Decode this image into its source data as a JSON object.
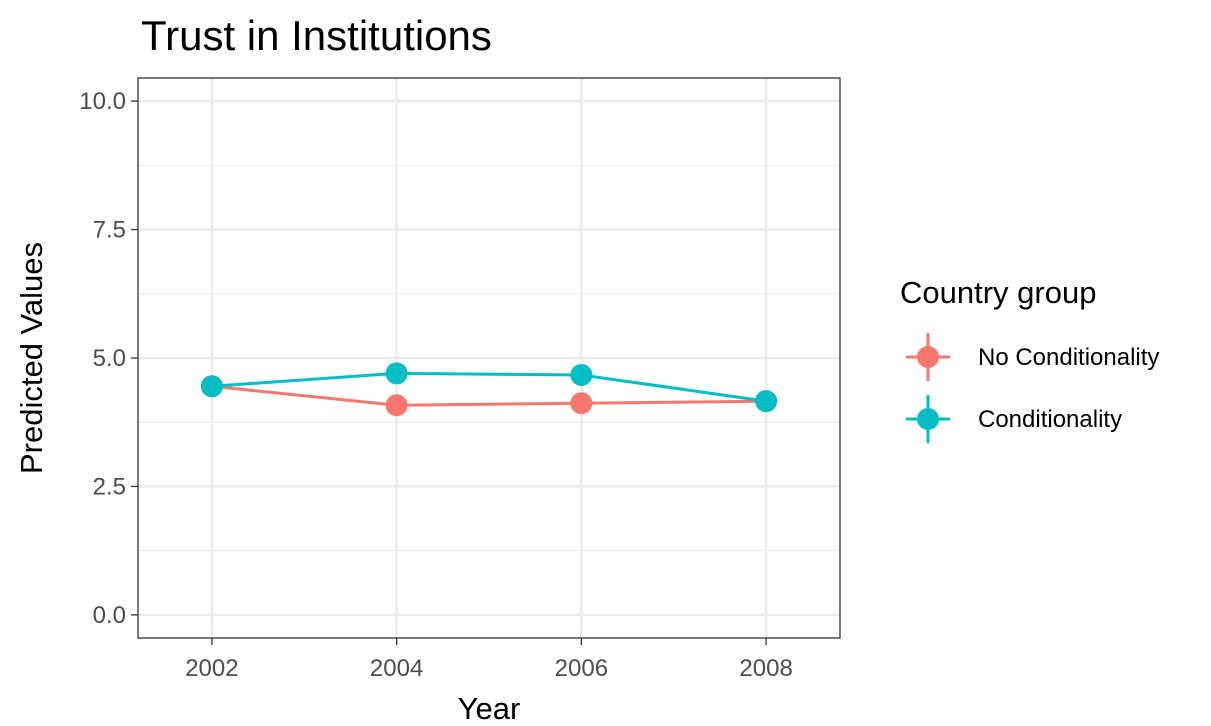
{
  "chart_data": {
    "type": "line",
    "title": "Trust in Institutions",
    "xlabel": "Year",
    "ylabel": "Predicted Values",
    "x": [
      2002,
      2004,
      2006,
      2008
    ],
    "x_ticks": [
      "2002",
      "2004",
      "2006",
      "2008"
    ],
    "xlim": [
      2001.2,
      2008.8
    ],
    "y_ticks": [
      "0.0",
      "2.5",
      "5.0",
      "7.5",
      "10.0"
    ],
    "ylim": [
      -0.45,
      10.45
    ],
    "grid": true,
    "legend": {
      "title": "Country group",
      "placement": "right"
    },
    "series": [
      {
        "name": "No Conditionality",
        "color": "#F8766D",
        "values": [
          4.45,
          4.08,
          4.12,
          4.16
        ]
      },
      {
        "name": "Conditionality",
        "color": "#00BFC4",
        "values": [
          4.45,
          4.7,
          4.67,
          4.16
        ]
      }
    ]
  }
}
